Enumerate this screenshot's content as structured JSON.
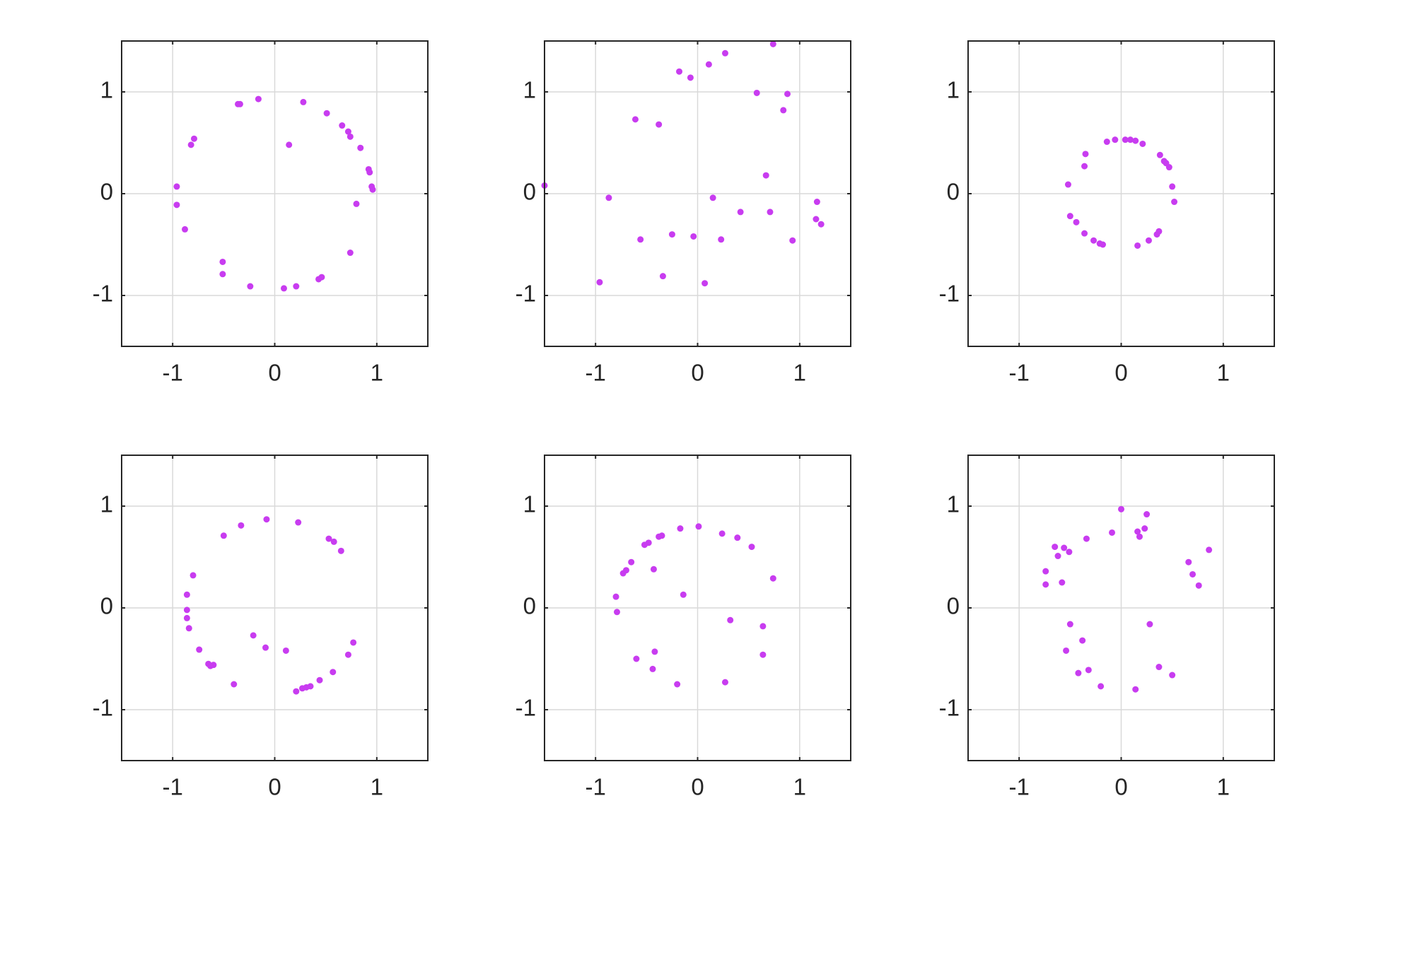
{
  "chart_data": [
    {
      "type": "scatter",
      "color": "#c83cf0",
      "grid": true,
      "xlim": [
        -1.5,
        1.5
      ],
      "ylim": [
        -1.5,
        1.5
      ],
      "xticks": [
        -1,
        0,
        1
      ],
      "yticks": [
        -1,
        0,
        1
      ],
      "x": [
        -0.96,
        -0.96,
        -0.88,
        -0.82,
        -0.79,
        -0.51,
        -0.51,
        -0.36,
        -0.34,
        -0.24,
        -0.16,
        0.09,
        0.14,
        0.21,
        0.28,
        0.43,
        0.46,
        0.51,
        0.66,
        0.72,
        0.74,
        0.74,
        0.8,
        0.84,
        0.92,
        0.93,
        0.95,
        0.96
      ],
      "y": [
        0.07,
        -0.11,
        -0.35,
        0.48,
        0.54,
        -0.67,
        -0.79,
        0.88,
        0.88,
        -0.91,
        0.93,
        -0.93,
        0.48,
        -0.91,
        0.9,
        -0.84,
        -0.82,
        0.79,
        0.67,
        0.61,
        0.56,
        -0.58,
        -0.1,
        0.45,
        0.24,
        0.21,
        0.07,
        0.04
      ]
    },
    {
      "type": "scatter",
      "color": "#c83cf0",
      "grid": true,
      "xlim": [
        -1.5,
        1.5
      ],
      "ylim": [
        -1.5,
        1.5
      ],
      "xticks": [
        -1,
        0,
        1
      ],
      "yticks": [
        -1,
        0,
        1
      ],
      "x": [
        -1.5,
        -0.96,
        -0.87,
        -0.61,
        -0.56,
        -0.38,
        -0.34,
        -0.25,
        -0.18,
        -0.07,
        -0.04,
        0.07,
        0.11,
        0.15,
        0.23,
        0.27,
        0.42,
        0.58,
        0.67,
        0.71,
        0.74,
        0.84,
        0.88,
        0.93,
        1.17,
        1.16,
        1.21
      ],
      "y": [
        0.08,
        -0.87,
        -0.04,
        0.73,
        -0.45,
        0.68,
        -0.81,
        -0.4,
        1.2,
        1.14,
        -0.42,
        -0.88,
        1.27,
        -0.04,
        -0.45,
        1.38,
        -0.18,
        0.99,
        0.18,
        -0.18,
        1.47,
        0.82,
        0.98,
        -0.46,
        -0.08,
        -0.25,
        -0.3
      ]
    },
    {
      "type": "scatter",
      "color": "#c83cf0",
      "grid": true,
      "xlim": [
        -1.5,
        1.5
      ],
      "ylim": [
        -1.5,
        1.5
      ],
      "xticks": [
        -1,
        0,
        1
      ],
      "yticks": [
        -1,
        0,
        1
      ],
      "x": [
        -0.52,
        -0.5,
        -0.44,
        -0.36,
        -0.35,
        -0.36,
        -0.27,
        -0.21,
        -0.18,
        -0.14,
        -0.06,
        0.04,
        0.09,
        0.14,
        0.16,
        0.21,
        0.27,
        0.35,
        0.38,
        0.42,
        0.44,
        0.47,
        0.5,
        0.52,
        0.37
      ],
      "y": [
        0.09,
        -0.22,
        -0.28,
        0.27,
        0.39,
        -0.39,
        -0.46,
        -0.49,
        -0.5,
        0.51,
        0.53,
        0.53,
        0.53,
        0.52,
        -0.51,
        0.49,
        -0.46,
        -0.4,
        0.38,
        0.32,
        0.3,
        0.26,
        0.07,
        -0.08,
        -0.37
      ]
    },
    {
      "type": "scatter",
      "color": "#c83cf0",
      "grid": true,
      "xlim": [
        -1.5,
        1.5
      ],
      "ylim": [
        -1.5,
        1.5
      ],
      "xticks": [
        -1,
        0,
        1
      ],
      "yticks": [
        -1,
        0,
        1
      ],
      "x": [
        -0.86,
        -0.86,
        -0.86,
        -0.84,
        -0.8,
        -0.74,
        -0.65,
        -0.63,
        -0.6,
        -0.5,
        -0.4,
        -0.33,
        -0.21,
        -0.09,
        -0.08,
        0.11,
        0.21,
        0.23,
        0.27,
        0.31,
        0.35,
        0.44,
        0.53,
        0.57,
        0.58,
        0.65,
        0.72,
        0.77
      ],
      "y": [
        0.13,
        -0.02,
        -0.1,
        -0.2,
        0.32,
        -0.41,
        -0.55,
        -0.57,
        -0.56,
        0.71,
        -0.75,
        0.81,
        -0.27,
        -0.39,
        0.87,
        -0.42,
        -0.82,
        0.84,
        -0.79,
        -0.78,
        -0.77,
        -0.71,
        0.68,
        -0.63,
        0.65,
        0.56,
        -0.46,
        -0.34
      ]
    },
    {
      "type": "scatter",
      "color": "#c83cf0",
      "grid": true,
      "xlim": [
        -1.5,
        1.5
      ],
      "ylim": [
        -1.5,
        1.5
      ],
      "xticks": [
        -1,
        0,
        1
      ],
      "yticks": [
        -1,
        0,
        1
      ],
      "x": [
        -0.8,
        -0.79,
        -0.73,
        -0.7,
        -0.65,
        -0.6,
        -0.52,
        -0.48,
        -0.44,
        -0.43,
        -0.42,
        -0.38,
        -0.35,
        -0.2,
        -0.17,
        -0.14,
        0.01,
        0.24,
        0.27,
        0.32,
        0.39,
        0.53,
        0.64,
        0.64,
        0.74
      ],
      "y": [
        0.11,
        -0.04,
        0.34,
        0.37,
        0.45,
        -0.5,
        0.62,
        0.64,
        -0.6,
        0.38,
        -0.43,
        0.7,
        0.71,
        -0.75,
        0.78,
        0.13,
        0.8,
        0.73,
        -0.73,
        -0.12,
        0.69,
        0.6,
        -0.18,
        -0.46,
        0.29
      ]
    },
    {
      "type": "scatter",
      "color": "#c83cf0",
      "grid": true,
      "xlim": [
        -1.5,
        1.5
      ],
      "ylim": [
        -1.5,
        1.5
      ],
      "xticks": [
        -1,
        0,
        1
      ],
      "yticks": [
        -1,
        0,
        1
      ],
      "x": [
        -0.74,
        -0.74,
        -0.65,
        -0.62,
        -0.58,
        -0.56,
        -0.54,
        -0.51,
        -0.5,
        -0.42,
        -0.38,
        -0.34,
        -0.32,
        -0.2,
        -0.09,
        0.0,
        0.14,
        0.16,
        0.18,
        0.23,
        0.25,
        0.28,
        0.37,
        0.5,
        0.66,
        0.7,
        0.76,
        0.86
      ],
      "y": [
        0.23,
        0.36,
        0.6,
        0.51,
        0.25,
        0.59,
        -0.42,
        0.55,
        -0.16,
        -0.64,
        -0.32,
        0.68,
        -0.61,
        -0.77,
        0.74,
        0.97,
        -0.8,
        0.75,
        0.7,
        0.78,
        0.92,
        -0.16,
        -0.58,
        -0.66,
        0.45,
        0.33,
        0.22,
        0.57
      ]
    }
  ]
}
